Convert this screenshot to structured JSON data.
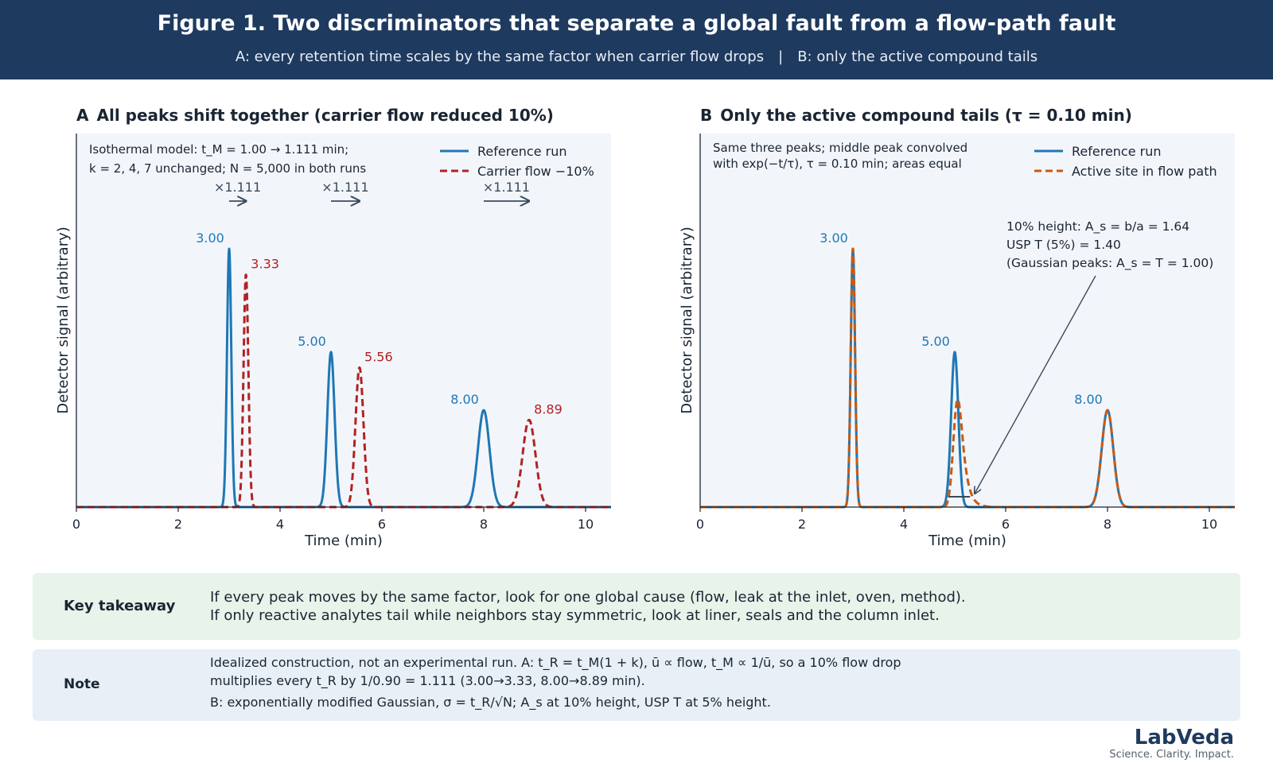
{
  "header": {
    "title": "Figure 1. Two discriminators that separate a global fault from a flow-path fault",
    "subtitle_a": "A: every retention time scales by the same factor when carrier flow drops",
    "separator": "|",
    "subtitle_b": "B: only the active compound tails"
  },
  "colors": {
    "banner": "#1e3a5f",
    "reference": "#1f77b4",
    "carrier": "#b22222",
    "active": "#c75b12",
    "plot_bg": "#f2f6fb",
    "takeaway_bg": "#e8f3ea",
    "note_bg": "#e8eff7"
  },
  "chart_data": [
    {
      "id": "A",
      "type": "line",
      "panel_letter": "A",
      "title": "All peaks shift together (carrier flow reduced 10%)",
      "xlabel": "Time (min)",
      "ylabel": "Detector signal (arbitrary)",
      "xlim": [
        0,
        10.5
      ],
      "xticks": [
        0,
        2,
        4,
        6,
        8,
        10
      ],
      "legend_position": "top-right",
      "model_note": {
        "line1": "Isothermal model: t_M = 1.00 → 1.111 min;",
        "line2": "k = 2, 4, 7 unchanged; N = 5,000 in both runs"
      },
      "shift_labels": [
        "×1.111",
        "×1.111",
        "×1.111"
      ],
      "series": [
        {
          "name": "Reference run",
          "style": "solid",
          "peaks": [
            {
              "tR": 3.0,
              "height": 1.0,
              "label": "3.00"
            },
            {
              "tR": 5.0,
              "height": 0.6,
              "label": "5.00"
            },
            {
              "tR": 8.0,
              "height": 0.375,
              "label": "8.00"
            }
          ]
        },
        {
          "name": "Carrier flow −10%",
          "style": "dashed",
          "peaks": [
            {
              "tR": 3.33,
              "height": 0.9,
              "label": "3.33"
            },
            {
              "tR": 5.56,
              "height": 0.54,
              "label": "5.56"
            },
            {
              "tR": 8.89,
              "height": 0.3375,
              "label": "8.89"
            }
          ]
        }
      ]
    },
    {
      "id": "B",
      "type": "line",
      "panel_letter": "B",
      "title": "Only the active compound tails (τ = 0.10 min)",
      "xlabel": "Time (min)",
      "ylabel": "Detector signal (arbitrary)",
      "xlim": [
        0,
        10.5
      ],
      "xticks": [
        0,
        2,
        4,
        6,
        8,
        10
      ],
      "legend_position": "top-right",
      "model_note": {
        "line1": "Same three peaks; middle peak convolved",
        "line2": "with exp(−t/τ), τ = 0.10 min; areas equal"
      },
      "annotation": {
        "line1": "10% height: A_s = b/a = 1.64",
        "line2": "USP T (5%) = 1.40",
        "line3": "(Gaussian peaks: A_s = T = 1.00)"
      },
      "tau": 0.1,
      "series": [
        {
          "name": "Reference run",
          "style": "solid",
          "peaks": [
            {
              "tR": 3.0,
              "height": 1.0,
              "label": "3.00"
            },
            {
              "tR": 5.0,
              "height": 0.6,
              "label": "5.00"
            },
            {
              "tR": 8.0,
              "height": 0.375,
              "label": "8.00"
            }
          ]
        },
        {
          "name": "Active site in flow path",
          "style": "dashed",
          "peaks": [
            {
              "tR": 3.0,
              "height": 1.0
            },
            {
              "tR": 5.0,
              "height": 0.6,
              "tailed": true
            },
            {
              "tR": 8.0,
              "height": 0.375
            }
          ]
        }
      ]
    }
  ],
  "takeaway": {
    "label": "Key takeaway",
    "line1": "If every peak moves by the same factor, look for one global cause (flow, leak at the inlet, oven, method).",
    "line2": "If only reactive analytes tail while neighbors stay symmetric, look at liner, seals and the column inlet."
  },
  "note": {
    "label": "Note",
    "line1": "Idealized construction, not an experimental run. A: t_R = t_M(1 + k), ū ∝ flow, t_M ∝ 1/ū, so a 10% flow drop",
    "line2": "multiplies every t_R by 1/0.90 = 1.111 (3.00→3.33, 8.00→8.89 min).",
    "line3": "B: exponentially modified Gaussian, σ = t_R/√N; A_s at 10% height, USP T at 5% height."
  },
  "brand": {
    "name": "LabVeda",
    "tagline": "Science. Clarity. Impact."
  }
}
